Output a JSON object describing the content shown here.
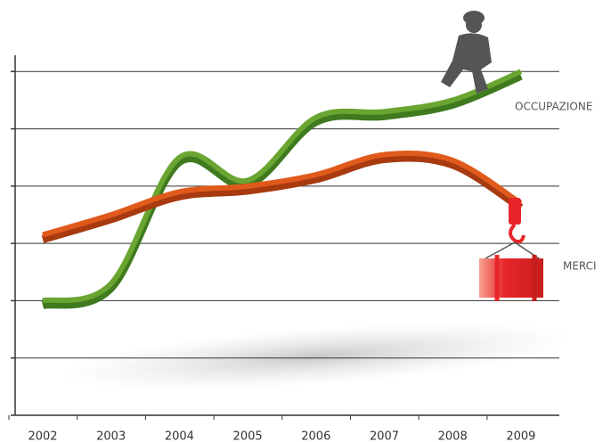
{
  "chart_data": {
    "type": "line",
    "categories": [
      "2002",
      "2003",
      "2004",
      "2005",
      "2006",
      "2007",
      "2008",
      "2009"
    ],
    "series": [
      {
        "name": "OCCUPAZIONE",
        "color": "#6aa532",
        "values": [
          2.0,
          2.3,
          4.5,
          4.1,
          5.2,
          5.3,
          5.5,
          6.0
        ]
      },
      {
        "name": "MERCI",
        "color": "#e05a1c",
        "values": [
          3.15,
          3.5,
          3.9,
          4.0,
          4.2,
          4.55,
          4.45,
          3.7
        ]
      }
    ],
    "ylim": [
      0,
      6.3
    ],
    "yticks": [
      1,
      2,
      3,
      4,
      5,
      6
    ],
    "grid": true
  }
}
